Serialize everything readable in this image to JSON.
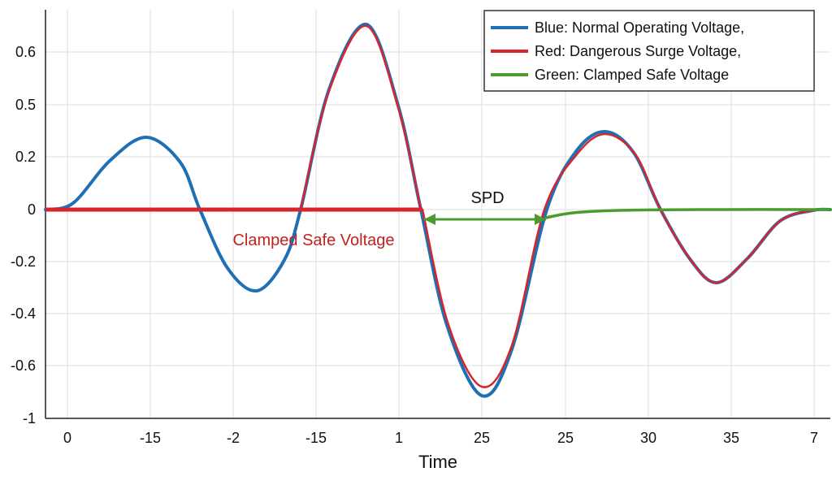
{
  "chart_data": {
    "type": "line",
    "title": "",
    "xlabel": "Time",
    "ylabel": "",
    "grid": true,
    "legend_position": "top-right",
    "ylim": [
      -1,
      0.7
    ],
    "x_tick_labels": [
      "0",
      "-15",
      "-2",
      "-15",
      "1",
      "25",
      "25",
      "30",
      "35",
      "7"
    ],
    "y_tick_labels": [
      "0.6",
      "0.5",
      "0.2",
      "0",
      "-0.2",
      "-0.4",
      "-0.6",
      "-1"
    ],
    "legend": [
      "Blue: Normal Operating Voltage,",
      "Red: Dangerous Surge Voltage,",
      "Green: Clamped Safe Voltage"
    ],
    "annotations": {
      "spd": "SPD",
      "clamped": "Clamped Safe Voltage"
    },
    "colors": {
      "blue": "#1f6fb5",
      "red": "#d7262b",
      "green": "#4a9d2d"
    },
    "x_index_note_free": true,
    "series": [
      {
        "key": "blue",
        "x": [
          0,
          0.5,
          1.0,
          1.5,
          2.0,
          2.5,
          3.0,
          3.5,
          4.0,
          4.5,
          5.0,
          5.5,
          6.0,
          6.5,
          7.0,
          7.5,
          8.0,
          8.5,
          9.0
        ],
        "y": [
          0.0,
          0.28,
          0.0,
          -0.32,
          0.0,
          0.7,
          0.0,
          -0.72,
          0.0,
          0.3,
          0.0,
          -0.28,
          0.0,
          0.0,
          0.0,
          0.0,
          0.0,
          0.0,
          0.0
        ]
      },
      {
        "key": "red",
        "x": [
          0,
          4.2,
          4.5,
          5.0,
          5.5,
          6.0,
          6.5,
          7.0,
          7.5,
          8.0,
          8.5,
          9.0
        ],
        "y": [
          0.0,
          0.0,
          0.0,
          -0.68,
          0.0,
          0.29,
          0.0,
          -0.28,
          0.0,
          0.0,
          0.0,
          0.0
        ]
      },
      {
        "key": "green",
        "x": [
          4.3,
          5.6,
          6.0,
          6.5,
          7.0,
          8.0,
          9.0
        ],
        "y": [
          -0.03,
          -0.03,
          0.0,
          0.0,
          0.0,
          0.0,
          0.0
        ]
      }
    ]
  }
}
